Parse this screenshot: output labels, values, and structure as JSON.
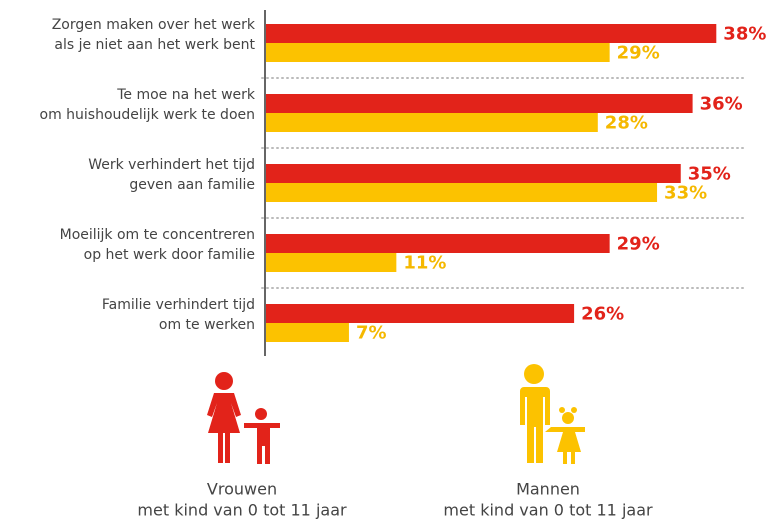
{
  "chart_data": {
    "type": "bar",
    "orientation": "horizontal",
    "categories": [
      "Zorgen maken over het werk\nals je niet aan het werk bent",
      "Te moe na het werk\nom huishoudelijk werk te doen",
      "Werk verhindert het tijd\ngeven aan familie",
      "Moeilijk om te concentreren\nop het werk door familie",
      "Familie verhindert tijd\nom te werken"
    ],
    "series": [
      {
        "name": "Vrouwen",
        "color": "#e2231a",
        "values": [
          38,
          36,
          35,
          29,
          26
        ],
        "value_labels": [
          "38%",
          "36%",
          "35%",
          "29%",
          "26%"
        ]
      },
      {
        "name": "Mannen",
        "color": "#fcc200",
        "values": [
          29,
          28,
          33,
          11,
          7
        ],
        "value_labels": [
          "29%",
          "28%",
          "33%",
          "11%",
          "7%"
        ]
      }
    ],
    "legend_subtitle": "met kind van 0 tot 11 jaar"
  }
}
